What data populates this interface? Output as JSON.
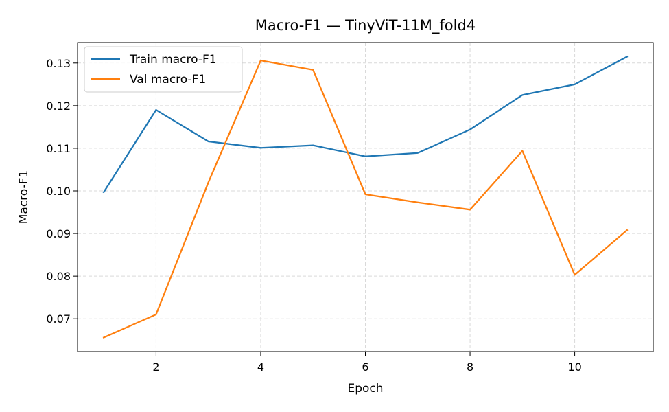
{
  "chart_data": {
    "type": "line",
    "title": "Macro-F1 — TinyViT-11M_fold4",
    "xlabel": "Epoch",
    "ylabel": "Macro-F1",
    "x": [
      1,
      2,
      3,
      4,
      5,
      6,
      7,
      8,
      9,
      10,
      11
    ],
    "xlim": [
      0.5,
      11.5
    ],
    "ylim": [
      0.0623,
      0.1348
    ],
    "xticks": [
      2,
      4,
      6,
      8,
      10
    ],
    "yticks": [
      0.07,
      0.08,
      0.09,
      0.1,
      0.11,
      0.12,
      0.13
    ],
    "ytick_labels": [
      "0.07",
      "0.08",
      "0.09",
      "0.10",
      "0.11",
      "0.12",
      "0.13"
    ],
    "grid": true,
    "legend_position": "top-left",
    "series": [
      {
        "name": "Train macro-F1",
        "color": "#1f77b4",
        "values": [
          0.0997,
          0.119,
          0.1116,
          0.1101,
          0.1107,
          0.1081,
          0.1089,
          0.1144,
          0.1225,
          0.125,
          0.1315
        ]
      },
      {
        "name": "Val macro-F1",
        "color": "#ff7f0e",
        "values": [
          0.0656,
          0.071,
          0.102,
          0.1306,
          0.1284,
          0.0992,
          0.0973,
          0.0956,
          0.1094,
          0.0803,
          0.0908
        ]
      }
    ]
  }
}
